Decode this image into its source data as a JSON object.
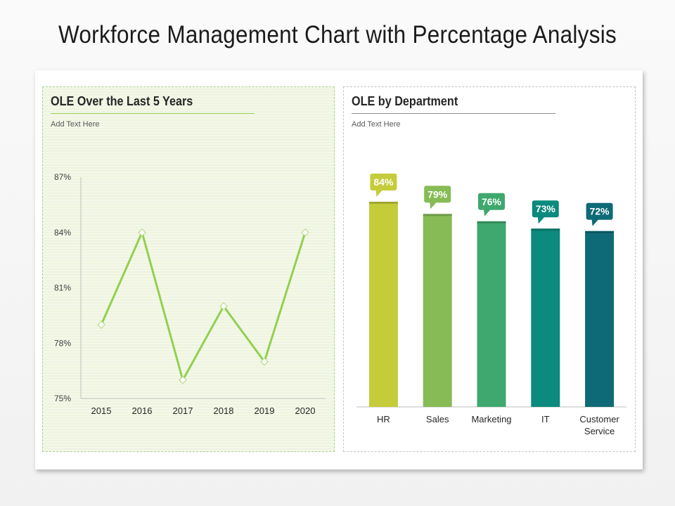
{
  "title": "Workforce Management Chart with Percentage Analysis",
  "panels": {
    "left": {
      "title": "OLE Over the Last 5 Years",
      "subtitle": "Add Text Here"
    },
    "right": {
      "title": "OLE by Department",
      "subtitle": "Add Text Here"
    }
  },
  "colors": {
    "line": "#92d050",
    "bars": [
      "#c5cc3a",
      "#87bb55",
      "#3fa86f",
      "#0b8a7d",
      "#0e6a76"
    ]
  },
  "chart_data": [
    {
      "type": "line",
      "x": [
        "2015",
        "2016",
        "2017",
        "2018",
        "2019",
        "2020"
      ],
      "series": [
        {
          "values": [
            79,
            84,
            76,
            80,
            77,
            84
          ]
        }
      ],
      "ylim": [
        75,
        87
      ],
      "yticks": [
        75,
        78,
        81,
        84,
        87
      ],
      "ytick_labels": [
        "75%",
        "78%",
        "81%",
        "84%",
        "87%"
      ],
      "grid": false,
      "markers": "diamond"
    },
    {
      "type": "bar",
      "categories": [
        "HR",
        "Sales",
        "Marketing",
        "IT",
        "Customer Service"
      ],
      "values": [
        84,
        79,
        76,
        73,
        72
      ],
      "data_labels": [
        "84%",
        "79%",
        "76%",
        "73%",
        "72%"
      ]
    }
  ]
}
